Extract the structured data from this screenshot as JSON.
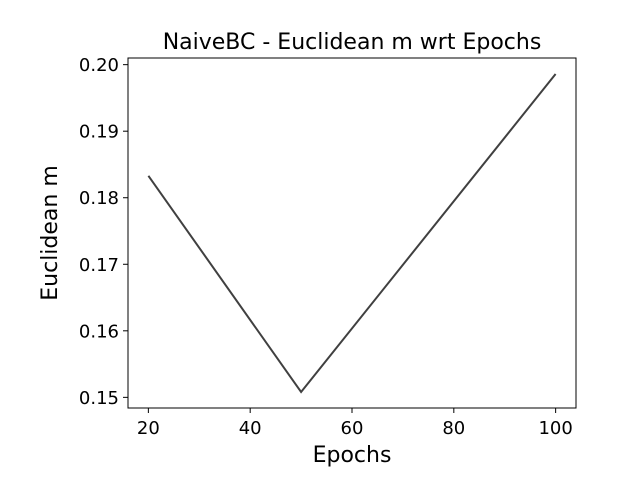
{
  "chart_data": {
    "type": "line",
    "title": "NaiveBC - Euclidean m wrt Epochs",
    "xlabel": "Epochs",
    "ylabel": "Euclidean m",
    "x": [
      20,
      50,
      100
    ],
    "series": [
      {
        "values": [
          0.1833,
          0.1508,
          0.1986
        ],
        "color": "#404040"
      }
    ],
    "xlim": [
      16,
      104
    ],
    "ylim": [
      0.1484,
      0.201
    ],
    "xticks": [
      20,
      40,
      60,
      80,
      100
    ],
    "xtick_labels": [
      "20",
      "40",
      "60",
      "80",
      "100"
    ],
    "yticks": [
      0.15,
      0.16,
      0.17,
      0.18,
      0.19,
      0.2
    ],
    "ytick_labels": [
      "0.15",
      "0.16",
      "0.17",
      "0.18",
      "0.19",
      "0.20"
    ],
    "grid": false,
    "legend": false
  }
}
